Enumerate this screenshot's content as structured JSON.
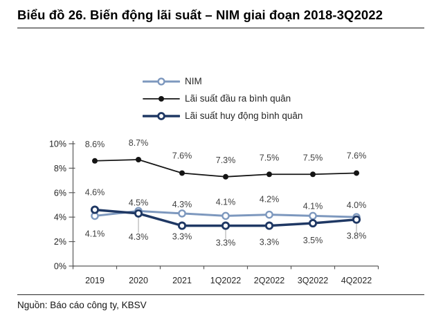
{
  "title": "Biểu đồ 26. Biến động lãi suất – NIM giai đoạn 2018-3Q2022",
  "source_note": "Nguồn: Báo cáo công ty, KBSV",
  "colors": {
    "nim": "#7D98BE",
    "lending": "#141414",
    "deposit": "#1F3864",
    "data_label": "#404040",
    "axis": "#595959",
    "text": "#262626",
    "leader": "#A6A6A6"
  },
  "chart_data": {
    "type": "line",
    "title": "Biểu đồ 26. Biến động lãi suất – NIM giai đoạn 2018-3Q2022",
    "categories": [
      "2019",
      "2020",
      "2021",
      "1Q2022",
      "2Q2022",
      "3Q2022",
      "4Q2022"
    ],
    "y_axis": {
      "tick_labels": [
        "0%",
        "2%",
        "4%",
        "6%",
        "8%",
        "10%"
      ],
      "min": 0,
      "max": 10,
      "unit": "%"
    },
    "grid": false,
    "legend_position": "top",
    "series": [
      {
        "name": "NIM",
        "color": "#7D98BE",
        "marker": "open-circle",
        "line_width": 3,
        "values": [
          4.1,
          4.5,
          4.3,
          4.1,
          4.2,
          4.1,
          4.0
        ],
        "labels": [
          "4.1%",
          "4.5%",
          "4.3%",
          "4.1%",
          "4.2%",
          "4.1%",
          "4.0%"
        ],
        "label_dy": [
          30,
          -8,
          -9,
          -16,
          -18,
          -10,
          -13
        ],
        "leaders": [
          false,
          false,
          false,
          false,
          false,
          false,
          false
        ]
      },
      {
        "name": "Lãi suất đầu ra bình quân",
        "color": "#141414",
        "marker": "filled-circle",
        "line_width": 1.8,
        "values": [
          8.6,
          8.7,
          7.6,
          7.3,
          7.5,
          7.5,
          7.6
        ],
        "labels": [
          "8.6%",
          "8.7%",
          "7.6%",
          "7.3%",
          "7.5%",
          "7.5%",
          "7.6%"
        ],
        "label_dy": [
          -20,
          -20,
          -21,
          -20,
          -20,
          -20,
          -21
        ],
        "leaders": [
          false,
          false,
          false,
          false,
          false,
          false,
          false
        ]
      },
      {
        "name": "Lãi suất huy động bình quân",
        "color": "#1F3864",
        "marker": "open-circle",
        "line_width": 3.5,
        "values": [
          4.6,
          4.3,
          3.3,
          3.3,
          3.3,
          3.5,
          3.8
        ],
        "labels": [
          "4.6%",
          "4.3%",
          "3.3%",
          "3.3%",
          "3.3%",
          "3.5%",
          "3.8%"
        ],
        "label_dy": [
          -21,
          38,
          20,
          29,
          28,
          29,
          28
        ],
        "leaders": [
          false,
          true,
          false,
          true,
          false,
          false,
          true
        ]
      }
    ]
  }
}
